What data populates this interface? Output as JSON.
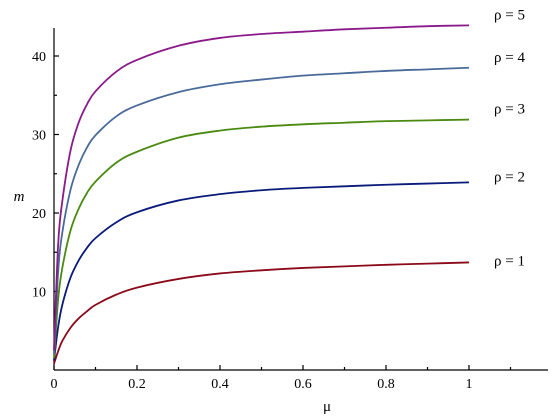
{
  "chart_data": {
    "type": "line",
    "title": "",
    "xlabel": "μ",
    "ylabel": "m",
    "xlim": [
      0,
      1.18
    ],
    "ylim": [
      0,
      44
    ],
    "x_ticks": [
      {
        "value": 0,
        "label": "0"
      },
      {
        "value": 0.2,
        "label": "0.2"
      },
      {
        "value": 0.4,
        "label": "0.4"
      },
      {
        "value": 0.6,
        "label": "0.6"
      },
      {
        "value": 0.8,
        "label": "0.8"
      },
      {
        "value": 1,
        "label": "1"
      }
    ],
    "y_ticks": [
      {
        "value": 10,
        "label": "10"
      },
      {
        "value": 20,
        "label": "20"
      },
      {
        "value": 30,
        "label": "30"
      },
      {
        "value": 40,
        "label": "40"
      }
    ],
    "grid": false,
    "legend": "none",
    "series": [
      {
        "name": "ρ = 1",
        "color": "#8b0a1a",
        "x": [
          0,
          0.01,
          0.02,
          0.04,
          0.06,
          0.08,
          0.1,
          0.15,
          0.2,
          0.3,
          0.4,
          0.5,
          0.6,
          0.7,
          0.8,
          0.9,
          1.0
        ],
        "y": [
          0.8,
          2.4,
          3.7,
          5.4,
          6.6,
          7.5,
          8.3,
          9.6,
          10.5,
          11.6,
          12.3,
          12.7,
          13.0,
          13.2,
          13.4,
          13.55,
          13.7
        ]
      },
      {
        "name": "ρ = 2",
        "color": "#0a1a7a",
        "x": [
          0,
          0.01,
          0.02,
          0.04,
          0.06,
          0.08,
          0.1,
          0.15,
          0.2,
          0.3,
          0.4,
          0.5,
          0.6,
          0.7,
          0.8,
          0.9,
          1.0
        ],
        "y": [
          1.2,
          5.5,
          8.3,
          11.8,
          14.0,
          15.6,
          16.8,
          18.8,
          20.1,
          21.6,
          22.4,
          22.9,
          23.2,
          23.4,
          23.6,
          23.75,
          23.9
        ]
      },
      {
        "name": "ρ = 3",
        "color": "#4a8a10",
        "x": [
          0,
          0.01,
          0.02,
          0.04,
          0.06,
          0.08,
          0.1,
          0.15,
          0.2,
          0.3,
          0.4,
          0.5,
          0.6,
          0.7,
          0.8,
          0.9,
          1.0
        ],
        "y": [
          1.5,
          9.0,
          13.0,
          17.8,
          20.6,
          22.6,
          24.0,
          26.4,
          27.8,
          29.6,
          30.5,
          31.0,
          31.3,
          31.5,
          31.7,
          31.8,
          31.9
        ]
      },
      {
        "name": "ρ = 4",
        "color": "#4a6a9a",
        "x": [
          0,
          0.01,
          0.02,
          0.04,
          0.06,
          0.08,
          0.1,
          0.15,
          0.2,
          0.3,
          0.4,
          0.5,
          0.6,
          0.7,
          0.8,
          0.9,
          1.0
        ],
        "y": [
          2.0,
          12.5,
          17.5,
          23.0,
          26.2,
          28.4,
          29.9,
          32.3,
          33.7,
          35.4,
          36.4,
          37.0,
          37.5,
          37.8,
          38.1,
          38.3,
          38.5
        ]
      },
      {
        "name": "ρ = 5",
        "color": "#8a1a8a",
        "x": [
          0,
          0.01,
          0.02,
          0.04,
          0.06,
          0.08,
          0.1,
          0.15,
          0.2,
          0.3,
          0.4,
          0.5,
          0.6,
          0.7,
          0.8,
          0.9,
          1.0
        ],
        "y": [
          2.5,
          16.0,
          21.5,
          28.0,
          31.6,
          33.9,
          35.5,
          38.0,
          39.5,
          41.3,
          42.3,
          42.8,
          43.1,
          43.4,
          43.6,
          43.8,
          43.9
        ]
      }
    ],
    "annotations": [
      {
        "text": "ρ = 5",
        "series": "ρ = 5",
        "y": 43.9
      },
      {
        "text": "ρ = 4",
        "series": "ρ = 4",
        "y": 38.5
      },
      {
        "text": "ρ = 3",
        "series": "ρ = 3",
        "y": 31.9
      },
      {
        "text": "ρ = 2",
        "series": "ρ = 2",
        "y": 23.9
      },
      {
        "text": "ρ = 1",
        "series": "ρ = 1",
        "y": 13.7
      }
    ]
  }
}
